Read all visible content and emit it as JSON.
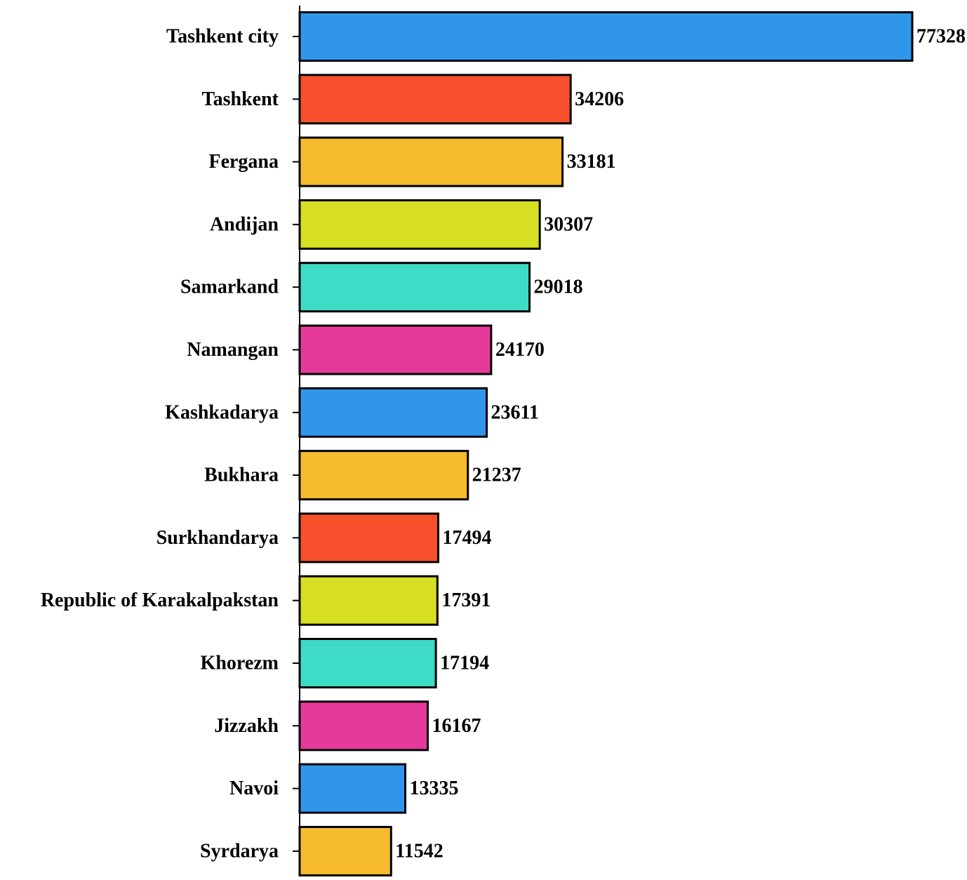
{
  "chart_data": {
    "type": "bar",
    "orientation": "horizontal",
    "title": "",
    "xlabel": "",
    "ylabel": "",
    "categories": [
      "Tashkent city",
      "Tashkent",
      "Fergana",
      "Andijan",
      "Samarkand",
      "Namangan",
      "Kashkadarya",
      "Bukhara",
      "Surkhandarya",
      "Republic of Karakalpakstan",
      "Khorezm",
      "Jizzakh",
      "Navoi",
      "Syrdarya"
    ],
    "values": [
      77328,
      34206,
      33181,
      30307,
      29018,
      24170,
      23611,
      21237,
      17494,
      17391,
      17194,
      16167,
      13335,
      11542
    ],
    "data_labels": [
      "77328",
      "34206",
      "33181",
      "30307",
      "29018",
      "24170",
      "23611",
      "21237",
      "17494",
      "17391",
      "17194",
      "16167",
      "13335",
      "11542"
    ],
    "colors": [
      "#3096ec",
      "#f8502d",
      "#f6bb2d",
      "#d6df21",
      "#3ddcc6",
      "#e63a9b",
      "#3096ec",
      "#f6bb2d",
      "#f8502d",
      "#d6df21",
      "#3ddcc6",
      "#e63a9b",
      "#3096ec",
      "#f6bb2d"
    ],
    "xlim": [
      0,
      77328
    ],
    "grid": false,
    "legend": "none"
  }
}
